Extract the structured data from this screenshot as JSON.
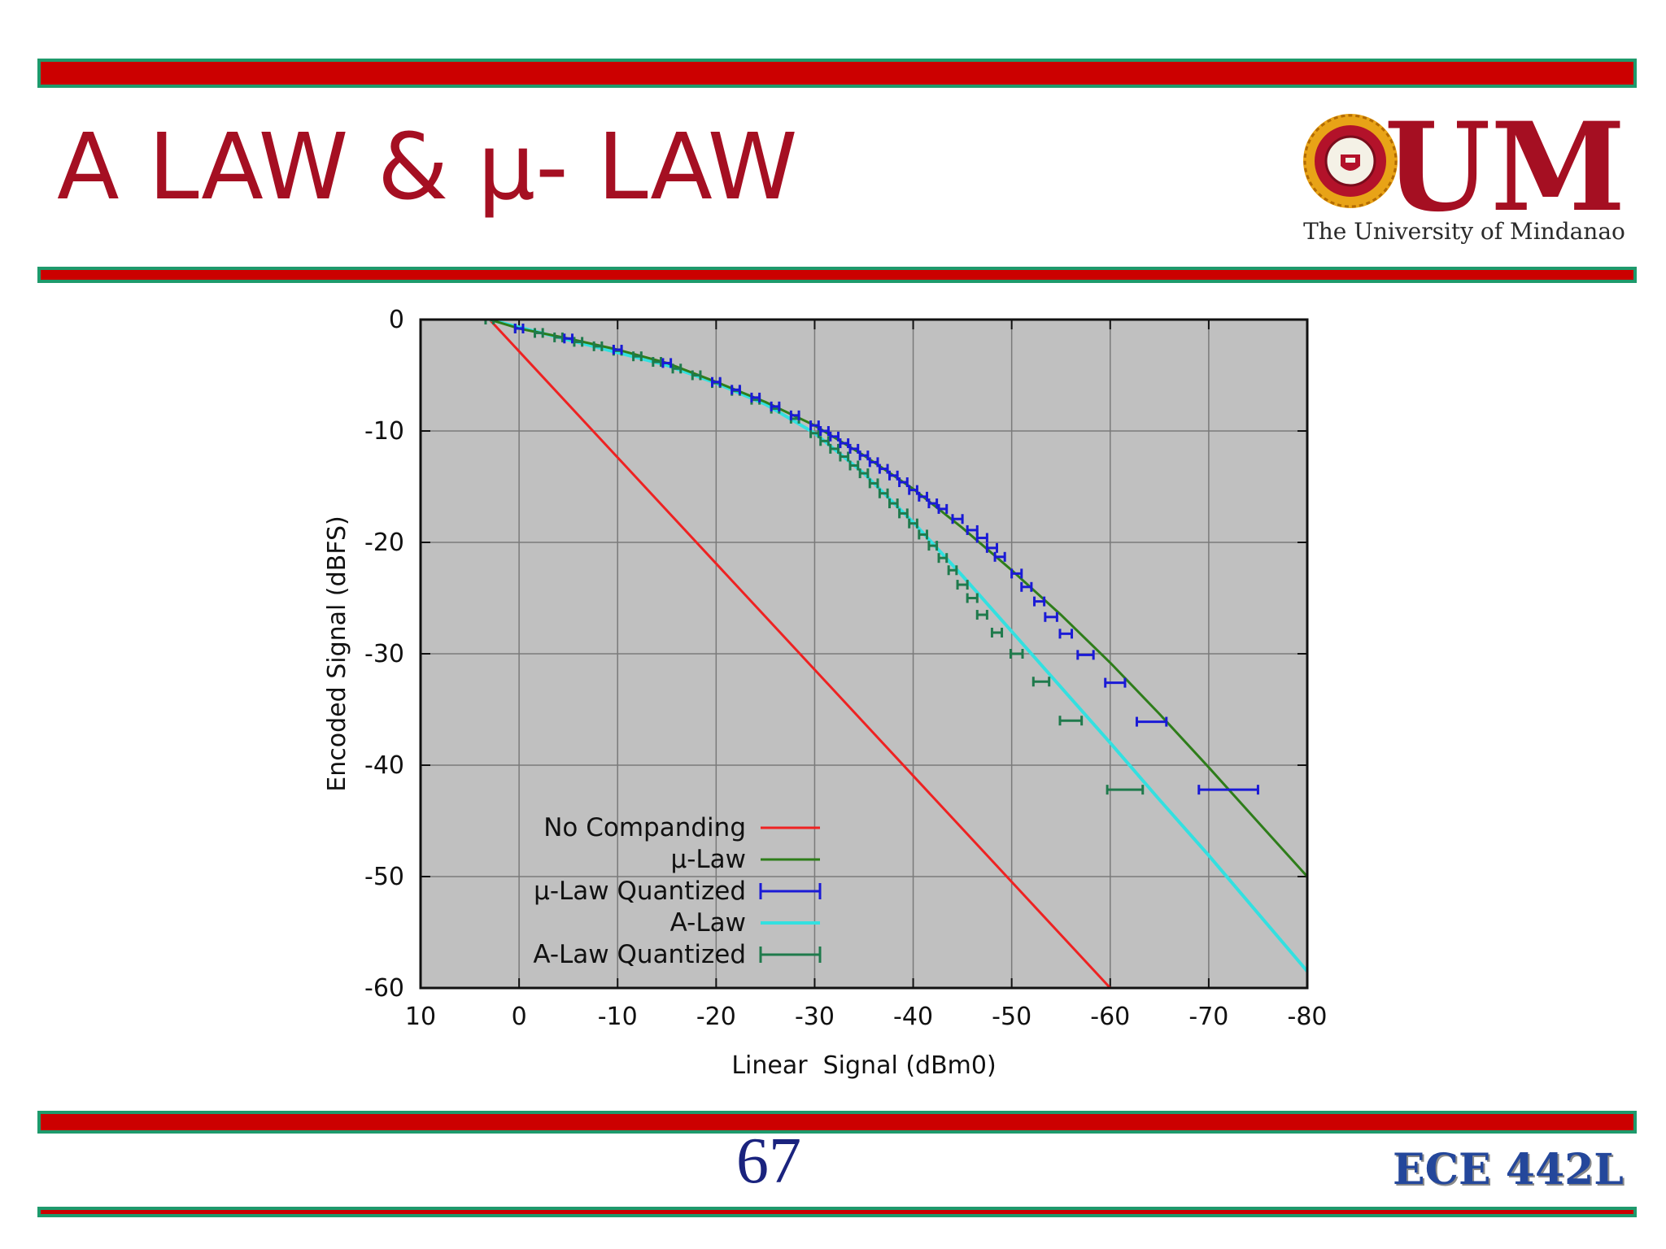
{
  "slide": {
    "title": "A LAW & µ- LAW",
    "page_number": "67",
    "course_code": "ECE 442L"
  },
  "logo": {
    "letters": "UM",
    "caption": "The University of Mindanao",
    "seal_text": "THE UNIVERSITY OF MINDANAO"
  },
  "colors": {
    "title": "#a50f22",
    "band_fill": "#cc0000",
    "band_border": "#1e9a6c",
    "plot_background": "#c0c0c0",
    "page_number": "#1a237e",
    "course_code": "#24479b"
  },
  "chart_data": {
    "type": "line",
    "xlabel": "Linear  Signal (dBm0)",
    "ylabel": "Encoded Signal (dBFS)",
    "xlim": [
      10,
      -80
    ],
    "ylim": [
      -60,
      0
    ],
    "x_axis_reversed": true,
    "xticks": [
      10,
      0,
      -10,
      -20,
      -30,
      -40,
      -50,
      -60,
      -70,
      -80
    ],
    "yticks": [
      0,
      -10,
      -20,
      -30,
      -40,
      -50,
      -60
    ],
    "xtick_labels": [
      "10",
      "0",
      "-10",
      "-20",
      "-30",
      "-40",
      "-50",
      "-60",
      "-70",
      "-80"
    ],
    "ytick_labels": [
      "0",
      "-10",
      "-20",
      "-30",
      "-40",
      "-50",
      "-60"
    ],
    "grid": true,
    "legend_position": "bottom-left",
    "series": [
      {
        "name": "No Companding",
        "kind": "line",
        "color": "#ee2222",
        "points": [
          [
            3,
            0
          ],
          [
            -60,
            -60
          ]
        ]
      },
      {
        "name": "µ-Law",
        "kind": "line",
        "color": "#2e7d1a",
        "points": [
          [
            3,
            0
          ],
          [
            0,
            -0.8
          ],
          [
            -5,
            -1.7
          ],
          [
            -10,
            -2.7
          ],
          [
            -15,
            -3.9
          ],
          [
            -20,
            -5.6
          ],
          [
            -25,
            -7.4
          ],
          [
            -30,
            -9.5
          ],
          [
            -35,
            -12.2
          ],
          [
            -40,
            -15.2
          ],
          [
            -45,
            -18.7
          ],
          [
            -50,
            -22.5
          ],
          [
            -55,
            -26.5
          ],
          [
            -60,
            -30.8
          ],
          [
            -65,
            -35.4
          ],
          [
            -70,
            -40.2
          ],
          [
            -75,
            -45.1
          ],
          [
            -80,
            -50
          ]
        ]
      },
      {
        "name": "µ-Law Quantized",
        "kind": "errorbar",
        "color": "#1a1ad6",
        "points": [
          {
            "x": 0,
            "y": -0.8,
            "xerr": 0.4
          },
          {
            "x": -5,
            "y": -1.7,
            "xerr": 0.4
          },
          {
            "x": -10,
            "y": -2.7,
            "xerr": 0.4
          },
          {
            "x": -15,
            "y": -3.9,
            "xerr": 0.4
          },
          {
            "x": -20,
            "y": -5.6,
            "xerr": 0.4
          },
          {
            "x": -22,
            "y": -6.3,
            "xerr": 0.4
          },
          {
            "x": -24,
            "y": -7.0,
            "xerr": 0.4
          },
          {
            "x": -26,
            "y": -7.8,
            "xerr": 0.4
          },
          {
            "x": -28,
            "y": -8.6,
            "xerr": 0.4
          },
          {
            "x": -30,
            "y": -9.5,
            "xerr": 0.4
          },
          {
            "x": -31,
            "y": -10.0,
            "xerr": 0.4
          },
          {
            "x": -32,
            "y": -10.5,
            "xerr": 0.4
          },
          {
            "x": -33,
            "y": -11.1,
            "xerr": 0.4
          },
          {
            "x": -34,
            "y": -11.6,
            "xerr": 0.4
          },
          {
            "x": -35,
            "y": -12.2,
            "xerr": 0.4
          },
          {
            "x": -36,
            "y": -12.8,
            "xerr": 0.4
          },
          {
            "x": -37,
            "y": -13.4,
            "xerr": 0.4
          },
          {
            "x": -38,
            "y": -14.0,
            "xerr": 0.4
          },
          {
            "x": -39,
            "y": -14.6,
            "xerr": 0.4
          },
          {
            "x": -40,
            "y": -15.3,
            "xerr": 0.4
          },
          {
            "x": -41,
            "y": -15.9,
            "xerr": 0.4
          },
          {
            "x": -42,
            "y": -16.5,
            "xerr": 0.4
          },
          {
            "x": -43,
            "y": -17.0,
            "xerr": 0.4
          },
          {
            "x": -44.5,
            "y": -17.9,
            "xerr": 0.5
          },
          {
            "x": -46,
            "y": -18.9,
            "xerr": 0.5
          },
          {
            "x": -47,
            "y": -19.6,
            "xerr": 0.5
          },
          {
            "x": -48,
            "y": -20.5,
            "xerr": 0.5
          },
          {
            "x": -48.8,
            "y": -21.3,
            "xerr": 0.5
          },
          {
            "x": -50.5,
            "y": -22.8,
            "xerr": 0.5
          },
          {
            "x": -51.5,
            "y": -24.0,
            "xerr": 0.5
          },
          {
            "x": -52.8,
            "y": -25.3,
            "xerr": 0.5
          },
          {
            "x": -54,
            "y": -26.7,
            "xerr": 0.6
          },
          {
            "x": -55.5,
            "y": -28.2,
            "xerr": 0.6
          },
          {
            "x": -57.5,
            "y": -30.1,
            "xerr": 0.8
          },
          {
            "x": -60.5,
            "y": -32.6,
            "xerr": 1.0
          },
          {
            "x": -64.2,
            "y": -36.1,
            "xerr": 1.5
          },
          {
            "x": -72,
            "y": -42.2,
            "xerr": 3.0
          }
        ]
      },
      {
        "name": "A-Law",
        "kind": "line",
        "color": "#33e0e0",
        "points": [
          [
            3,
            0
          ],
          [
            -15,
            -4.1
          ],
          [
            -20,
            -5.7
          ],
          [
            -25,
            -7.6
          ],
          [
            -30,
            -10.2
          ],
          [
            -35,
            -13.8
          ],
          [
            -40,
            -18.2
          ],
          [
            -45,
            -23.0
          ],
          [
            -50,
            -28.0
          ],
          [
            -55,
            -33.0
          ],
          [
            -60,
            -38.0
          ],
          [
            -65,
            -43.1
          ],
          [
            -70,
            -48.1
          ],
          [
            -75,
            -53.3
          ],
          [
            -80,
            -58.5
          ]
        ]
      },
      {
        "name": "A-Law Quantized",
        "kind": "errorbar",
        "color": "#1f7a4c",
        "points": [
          {
            "x": 3,
            "y": 0,
            "xerr": 0.4
          },
          {
            "x": 0,
            "y": -0.8,
            "xerr": 0.4
          },
          {
            "x": -2,
            "y": -1.2,
            "xerr": 0.4
          },
          {
            "x": -4,
            "y": -1.6,
            "xerr": 0.4
          },
          {
            "x": -6,
            "y": -2.0,
            "xerr": 0.4
          },
          {
            "x": -8,
            "y": -2.4,
            "xerr": 0.4
          },
          {
            "x": -10,
            "y": -2.8,
            "xerr": 0.4
          },
          {
            "x": -12,
            "y": -3.3,
            "xerr": 0.4
          },
          {
            "x": -14,
            "y": -3.8,
            "xerr": 0.4
          },
          {
            "x": -16,
            "y": -4.4,
            "xerr": 0.4
          },
          {
            "x": -18,
            "y": -5.0,
            "xerr": 0.4
          },
          {
            "x": -20,
            "y": -5.7,
            "xerr": 0.4
          },
          {
            "x": -22,
            "y": -6.4,
            "xerr": 0.4
          },
          {
            "x": -24,
            "y": -7.2,
            "xerr": 0.4
          },
          {
            "x": -26,
            "y": -8.0,
            "xerr": 0.4
          },
          {
            "x": -28,
            "y": -8.9,
            "xerr": 0.4
          },
          {
            "x": -30,
            "y": -10.2,
            "xerr": 0.4
          },
          {
            "x": -31,
            "y": -10.9,
            "xerr": 0.4
          },
          {
            "x": -32,
            "y": -11.6,
            "xerr": 0.4
          },
          {
            "x": -33,
            "y": -12.3,
            "xerr": 0.4
          },
          {
            "x": -34,
            "y": -13.1,
            "xerr": 0.4
          },
          {
            "x": -35,
            "y": -13.8,
            "xerr": 0.4
          },
          {
            "x": -36,
            "y": -14.7,
            "xerr": 0.4
          },
          {
            "x": -37,
            "y": -15.6,
            "xerr": 0.4
          },
          {
            "x": -38,
            "y": -16.5,
            "xerr": 0.4
          },
          {
            "x": -39,
            "y": -17.4,
            "xerr": 0.4
          },
          {
            "x": -40,
            "y": -18.3,
            "xerr": 0.4
          },
          {
            "x": -41,
            "y": -19.3,
            "xerr": 0.4
          },
          {
            "x": -42,
            "y": -20.3,
            "xerr": 0.4
          },
          {
            "x": -43,
            "y": -21.4,
            "xerr": 0.4
          },
          {
            "x": -44,
            "y": -22.5,
            "xerr": 0.4
          },
          {
            "x": -45,
            "y": -23.8,
            "xerr": 0.5
          },
          {
            "x": -46,
            "y": -25.0,
            "xerr": 0.5
          },
          {
            "x": -47,
            "y": -26.5,
            "xerr": 0.5
          },
          {
            "x": -48.5,
            "y": -28.1,
            "xerr": 0.5
          },
          {
            "x": -50.5,
            "y": -30.0,
            "xerr": 0.6
          },
          {
            "x": -53,
            "y": -32.5,
            "xerr": 0.8
          },
          {
            "x": -56,
            "y": -36.0,
            "xerr": 1.1
          },
          {
            "x": -61.5,
            "y": -42.2,
            "xerr": 1.8
          }
        ]
      }
    ]
  }
}
